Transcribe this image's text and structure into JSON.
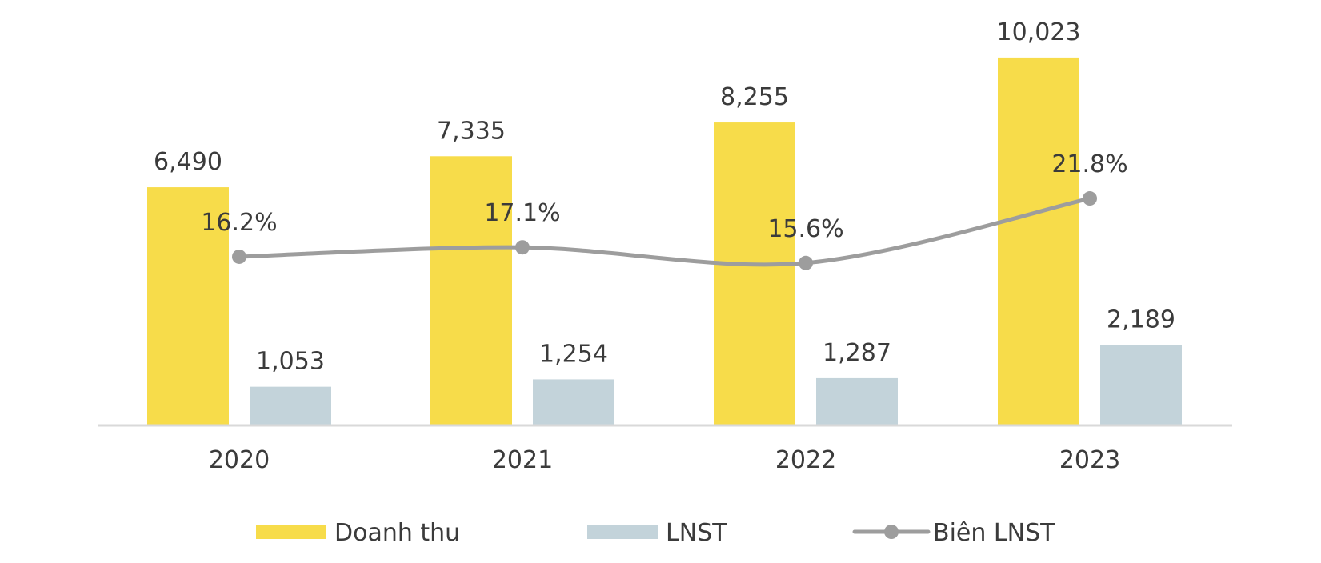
{
  "chart_data": {
    "type": "bar",
    "categories": [
      "2020",
      "2021",
      "2022",
      "2023"
    ],
    "series": [
      {
        "name": "Doanh thu",
        "kind": "bar",
        "color": "#F7DC4A",
        "values": [
          6490,
          7335,
          8255,
          10023
        ],
        "labels": [
          "6,490",
          "7,335",
          "8,255",
          "10,023"
        ]
      },
      {
        "name": "LNST",
        "kind": "bar",
        "color": "#C3D3DA",
        "values": [
          1053,
          1254,
          1287,
          2189
        ],
        "labels": [
          "1,053",
          "1,254",
          "1,287",
          "2,189"
        ]
      },
      {
        "name": "Biên LNST",
        "kind": "line",
        "color": "#9D9D9D",
        "values": [
          16.2,
          17.1,
          15.6,
          21.8
        ],
        "labels": [
          "16.2%",
          "17.1%",
          "15.6%",
          "21.8%"
        ]
      }
    ],
    "ylim": [
      0,
      10500
    ],
    "line_ylim": [
      0,
      37
    ],
    "grid": false,
    "legend_position": "bottom",
    "axis_color": "#D9D9D9"
  }
}
